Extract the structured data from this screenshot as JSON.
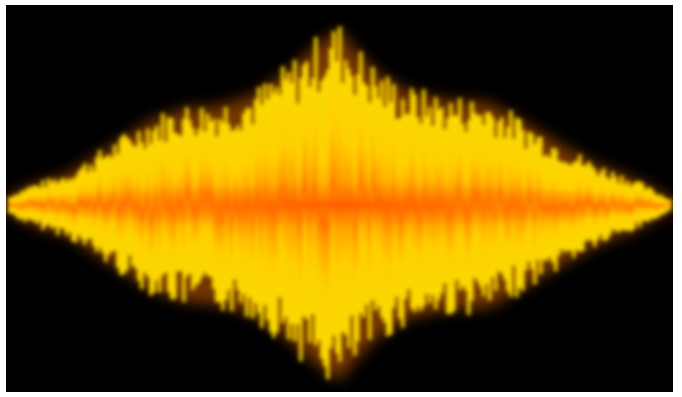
{
  "image": {
    "background_color": "#000000",
    "border_color": "#ffffff",
    "colors": {
      "core": "#ff6a00",
      "mid": "#ffb300",
      "outer": "#ffe000",
      "edge": "#c85000"
    }
  }
}
